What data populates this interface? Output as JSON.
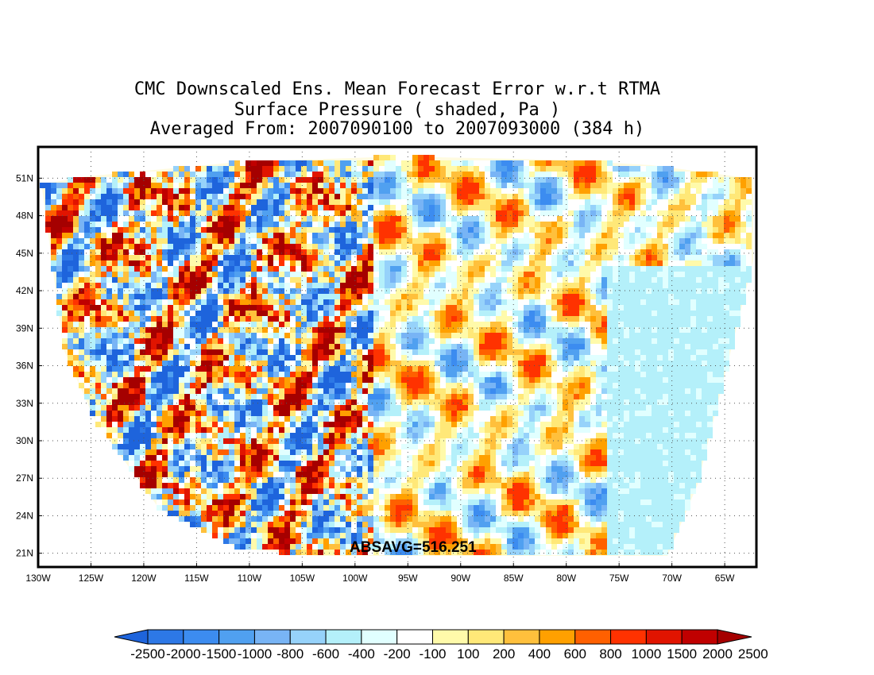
{
  "titles": {
    "line1": "CMC Downscaled Ens. Mean Forecast Error w.r.t RTMA",
    "line2": "Surface Pressure ( shaded, Pa )",
    "line3": "Averaged From: 2007090100 to 2007093000 (384 h)"
  },
  "annotation": "ABSAVG=516.251",
  "map": {
    "lat_labels": [
      "51N",
      "48N",
      "45N",
      "42N",
      "39N",
      "36N",
      "33N",
      "30N",
      "27N",
      "24N",
      "21N"
    ],
    "lon_labels": [
      "130W",
      "125W",
      "120W",
      "115W",
      "110W",
      "105W",
      "100W",
      "95W",
      "90W",
      "85W",
      "80W",
      "75W",
      "70W",
      "65W"
    ],
    "lat_values": [
      51,
      48,
      45,
      42,
      39,
      36,
      33,
      30,
      27,
      24,
      21
    ],
    "lon_values": [
      -130,
      -125,
      -120,
      -115,
      -110,
      -105,
      -100,
      -95,
      -90,
      -85,
      -80,
      -75,
      -70,
      -65
    ],
    "lon_range": [
      -130,
      -62
    ],
    "lat_range": [
      19.9,
      53.5
    ],
    "grid": true,
    "field": "Surface Pressure forecast error (Pa)"
  },
  "colorbar": {
    "levels": [
      "-2500",
      "-2000",
      "-1500",
      "-1000",
      "-800",
      "-600",
      "-400",
      "-200",
      "-100",
      "100",
      "200",
      "400",
      "600",
      "800",
      "1000",
      "1500",
      "2000",
      "2500"
    ],
    "colors": [
      "#1e64dc",
      "#2d78e6",
      "#3c8cf0",
      "#50a0f0",
      "#78b4f5",
      "#96d2fa",
      "#b4f0fa",
      "#e1ffff",
      "#ffffff",
      "#fffaaa",
      "#ffe878",
      "#ffc03c",
      "#ffa000",
      "#ff6000",
      "#ff3200",
      "#e11400",
      "#c00000",
      "#a50000"
    ]
  }
}
